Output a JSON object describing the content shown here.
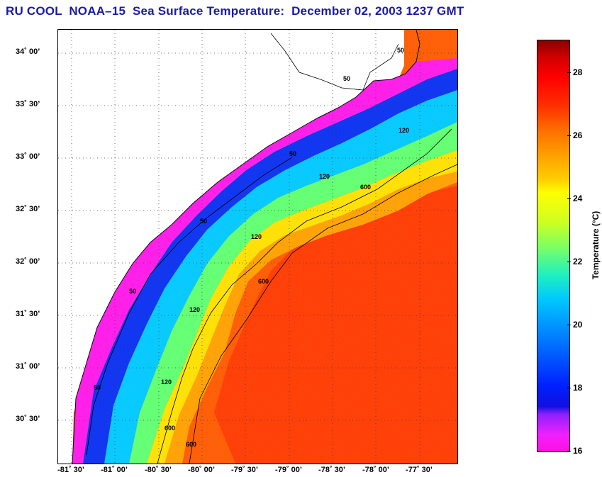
{
  "title": "RU COOL  NOAA–15  Sea Surface Temperature:  December 02, 2003 1237 GMT",
  "axes": {
    "latitude_ticks": [
      "34˚ 00’",
      "33˚ 30’",
      "33˚ 00’",
      "32˚ 30’",
      "32˚ 00’",
      "31˚ 30’",
      "31˚ 00’",
      "30˚ 30’"
    ],
    "longitude_ticks": [
      "-81˚ 30’",
      "-81˚ 00’",
      "-80˚ 30’",
      "-80˚ 00’",
      "-79˚ 30’",
      "-79˚ 00’",
      "-78˚ 30’",
      "-78˚ 00’",
      "-77˚ 30’"
    ]
  },
  "colorbar": {
    "label": "Temperature (°C)",
    "ticks": [
      "16",
      "18",
      "20",
      "22",
      "24",
      "26",
      "28"
    ],
    "range": [
      16,
      29
    ]
  },
  "contours": {
    "isobath_labels": [
      "50",
      "50",
      "50",
      "50",
      "50",
      "50",
      "120",
      "120",
      "120",
      "120",
      "120",
      "600",
      "600",
      "600",
      "600"
    ]
  },
  "colors": {
    "title": "#1a1aa6",
    "cold_edge": "#ff10e0",
    "gulf_stream": "#ff3000",
    "land": "#ffffff"
  }
}
